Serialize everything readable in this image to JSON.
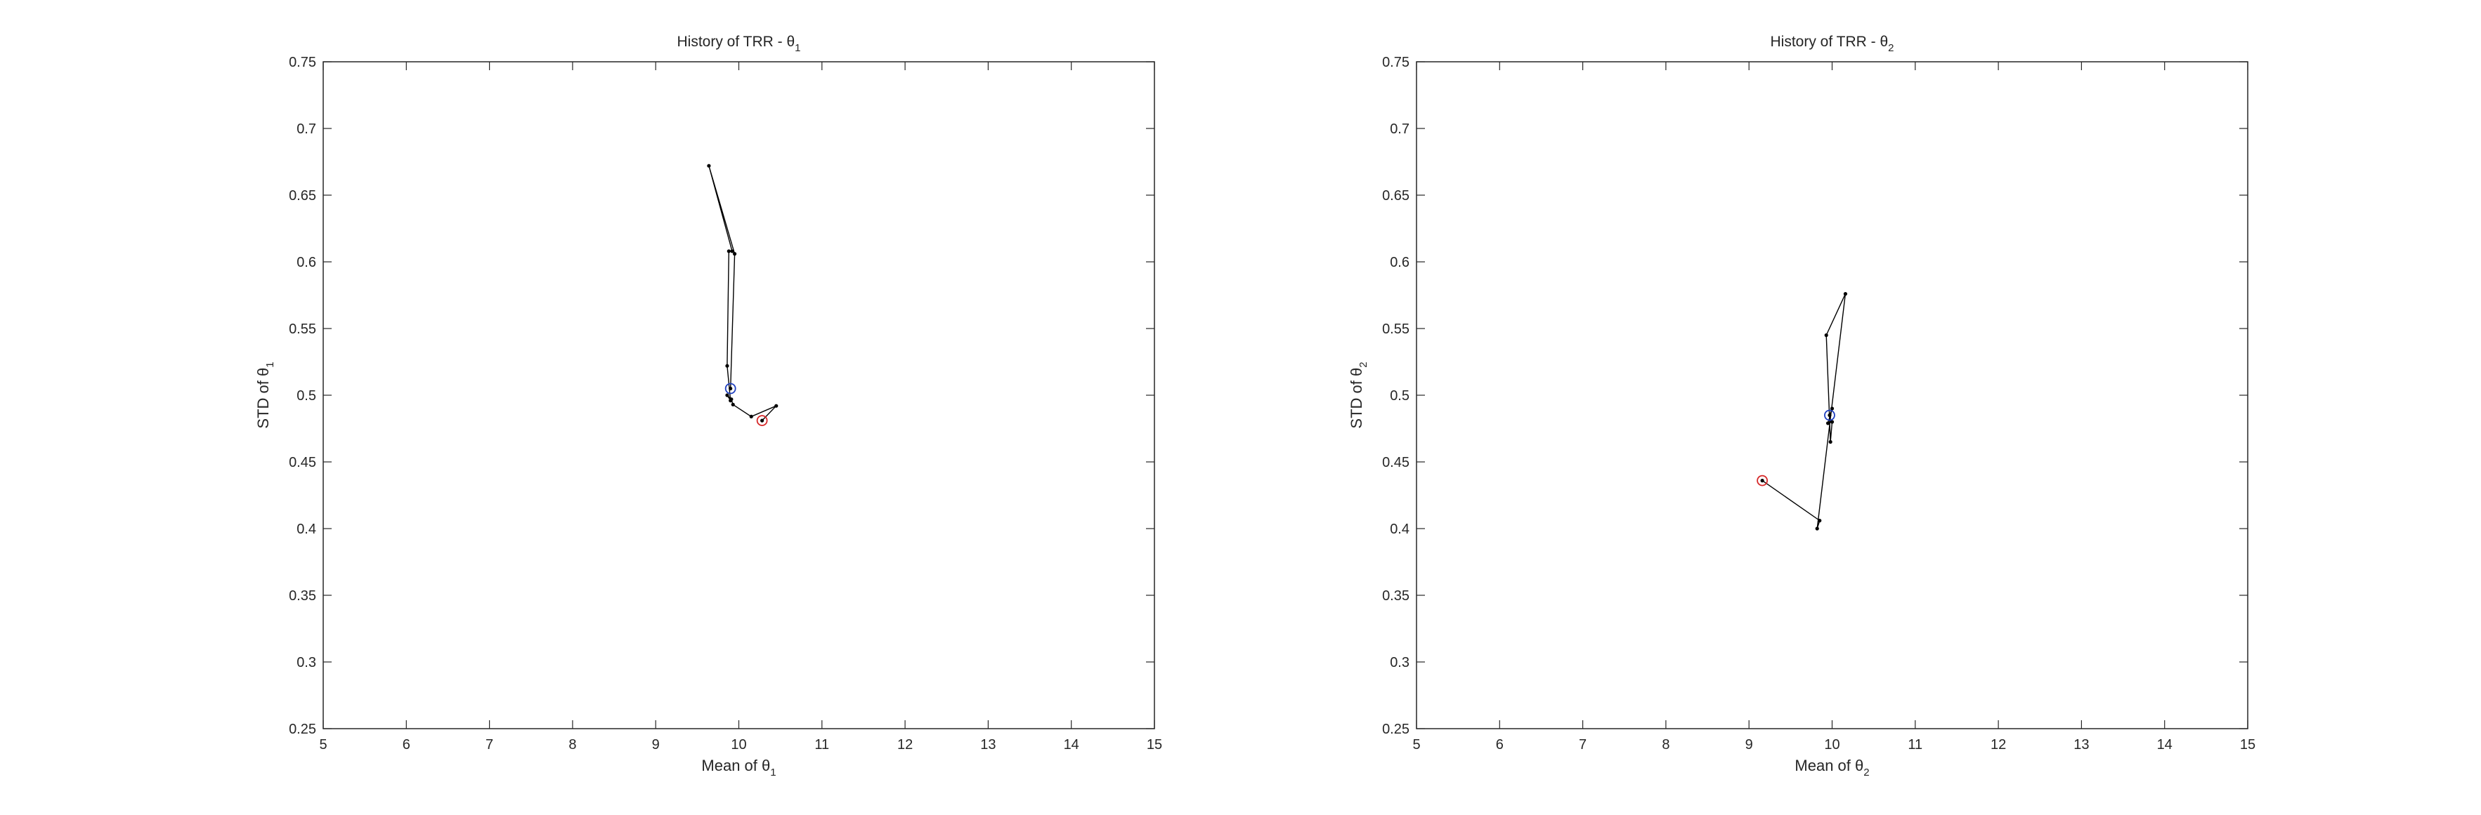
{
  "chart_data": [
    {
      "type": "line",
      "title": "History of TRR - θ",
      "title_subscript": "1",
      "xlabel": "Mean of θ",
      "xlabel_subscript": "1",
      "ylabel": "STD of θ",
      "ylabel_subscript": "1",
      "xlim": [
        5,
        15
      ],
      "ylim": [
        0.25,
        0.75
      ],
      "xticks": [
        "5",
        "6",
        "7",
        "8",
        "9",
        "10",
        "11",
        "12",
        "13",
        "14",
        "15"
      ],
      "yticks": [
        "0.25",
        "0.3",
        "0.35",
        "0.4",
        "0.45",
        "0.5",
        "0.55",
        "0.6",
        "0.65",
        "0.7",
        "0.75"
      ],
      "grid": false,
      "series": [
        {
          "x": [
            10.28,
            10.45,
            10.15,
            9.93,
            9.91,
            9.86,
            9.9,
            9.86,
            9.88,
            9.92,
            9.64,
            9.95,
            9.9
          ],
          "y": [
            0.481,
            0.492,
            0.484,
            0.493,
            0.497,
            0.5,
            0.496,
            0.522,
            0.608,
            0.608,
            0.672,
            0.606,
            0.505
          ],
          "color": "#000000"
        }
      ],
      "start_marker": {
        "x": 10.28,
        "y": 0.481,
        "color": "#d62728"
      },
      "end_marker": {
        "x": 9.9,
        "y": 0.505,
        "color": "#1f3fbf"
      }
    },
    {
      "type": "line",
      "title": "History of TRR - θ",
      "title_subscript": "2",
      "xlabel": "Mean of θ",
      "xlabel_subscript": "2",
      "ylabel": "STD of θ",
      "ylabel_subscript": "2",
      "xlim": [
        5,
        15
      ],
      "ylim": [
        0.25,
        0.75
      ],
      "xticks": [
        "5",
        "6",
        "7",
        "8",
        "9",
        "10",
        "11",
        "12",
        "13",
        "14",
        "15"
      ],
      "yticks": [
        "0.25",
        "0.3",
        "0.35",
        "0.4",
        "0.45",
        "0.5",
        "0.55",
        "0.6",
        "0.65",
        "0.7",
        "0.75"
      ],
      "grid": false,
      "series": [
        {
          "x": [
            9.16,
            9.85,
            9.82,
            10.16,
            9.93,
            9.98,
            10.0,
            9.95,
            10.0,
            9.97
          ],
          "y": [
            0.436,
            0.406,
            0.4,
            0.576,
            0.545,
            0.465,
            0.48,
            0.479,
            0.49,
            0.485
          ],
          "color": "#000000"
        }
      ],
      "start_marker": {
        "x": 9.16,
        "y": 0.436,
        "color": "#d62728"
      },
      "end_marker": {
        "x": 9.97,
        "y": 0.485,
        "color": "#1f3fbf"
      }
    }
  ]
}
